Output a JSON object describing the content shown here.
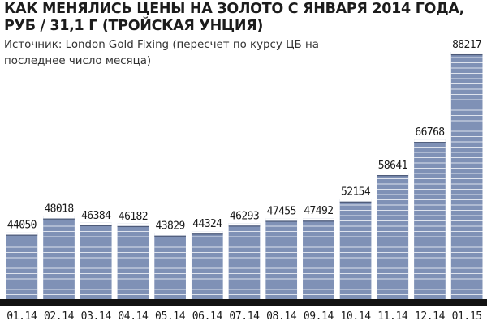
{
  "chart_data": {
    "type": "bar",
    "title": "КАК МЕНЯЛИСЬ ЦЕНЫ НА ЗОЛОТО С ЯНВАРЯ 2014 ГОДА, РУБ / 31,1 Г (ТРОЙСКАЯ УНЦИЯ)",
    "subtitle": "Источник: London Gold Fixing (пересчет по курсу ЦБ на последнее число месяца)",
    "xlabel": "",
    "ylabel": "",
    "categories": [
      "01.14",
      "02.14",
      "03.14",
      "04.14",
      "05.14",
      "06.14",
      "07.14",
      "08.14",
      "09.14",
      "10.14",
      "11.14",
      "12.14",
      "01.15"
    ],
    "values": [
      44050,
      48018,
      46384,
      46182,
      43829,
      44324,
      46293,
      47455,
      47492,
      52154,
      58641,
      66768,
      88217
    ],
    "ylim": [
      0,
      90000
    ],
    "grid": false,
    "legend": "none",
    "colors": {
      "bar_fill": "#7f91b6",
      "bar_stripe": "#eef1f7",
      "bar_top": "#ffffff",
      "axis_band": "#121212",
      "text": "#1a1a1a"
    }
  }
}
